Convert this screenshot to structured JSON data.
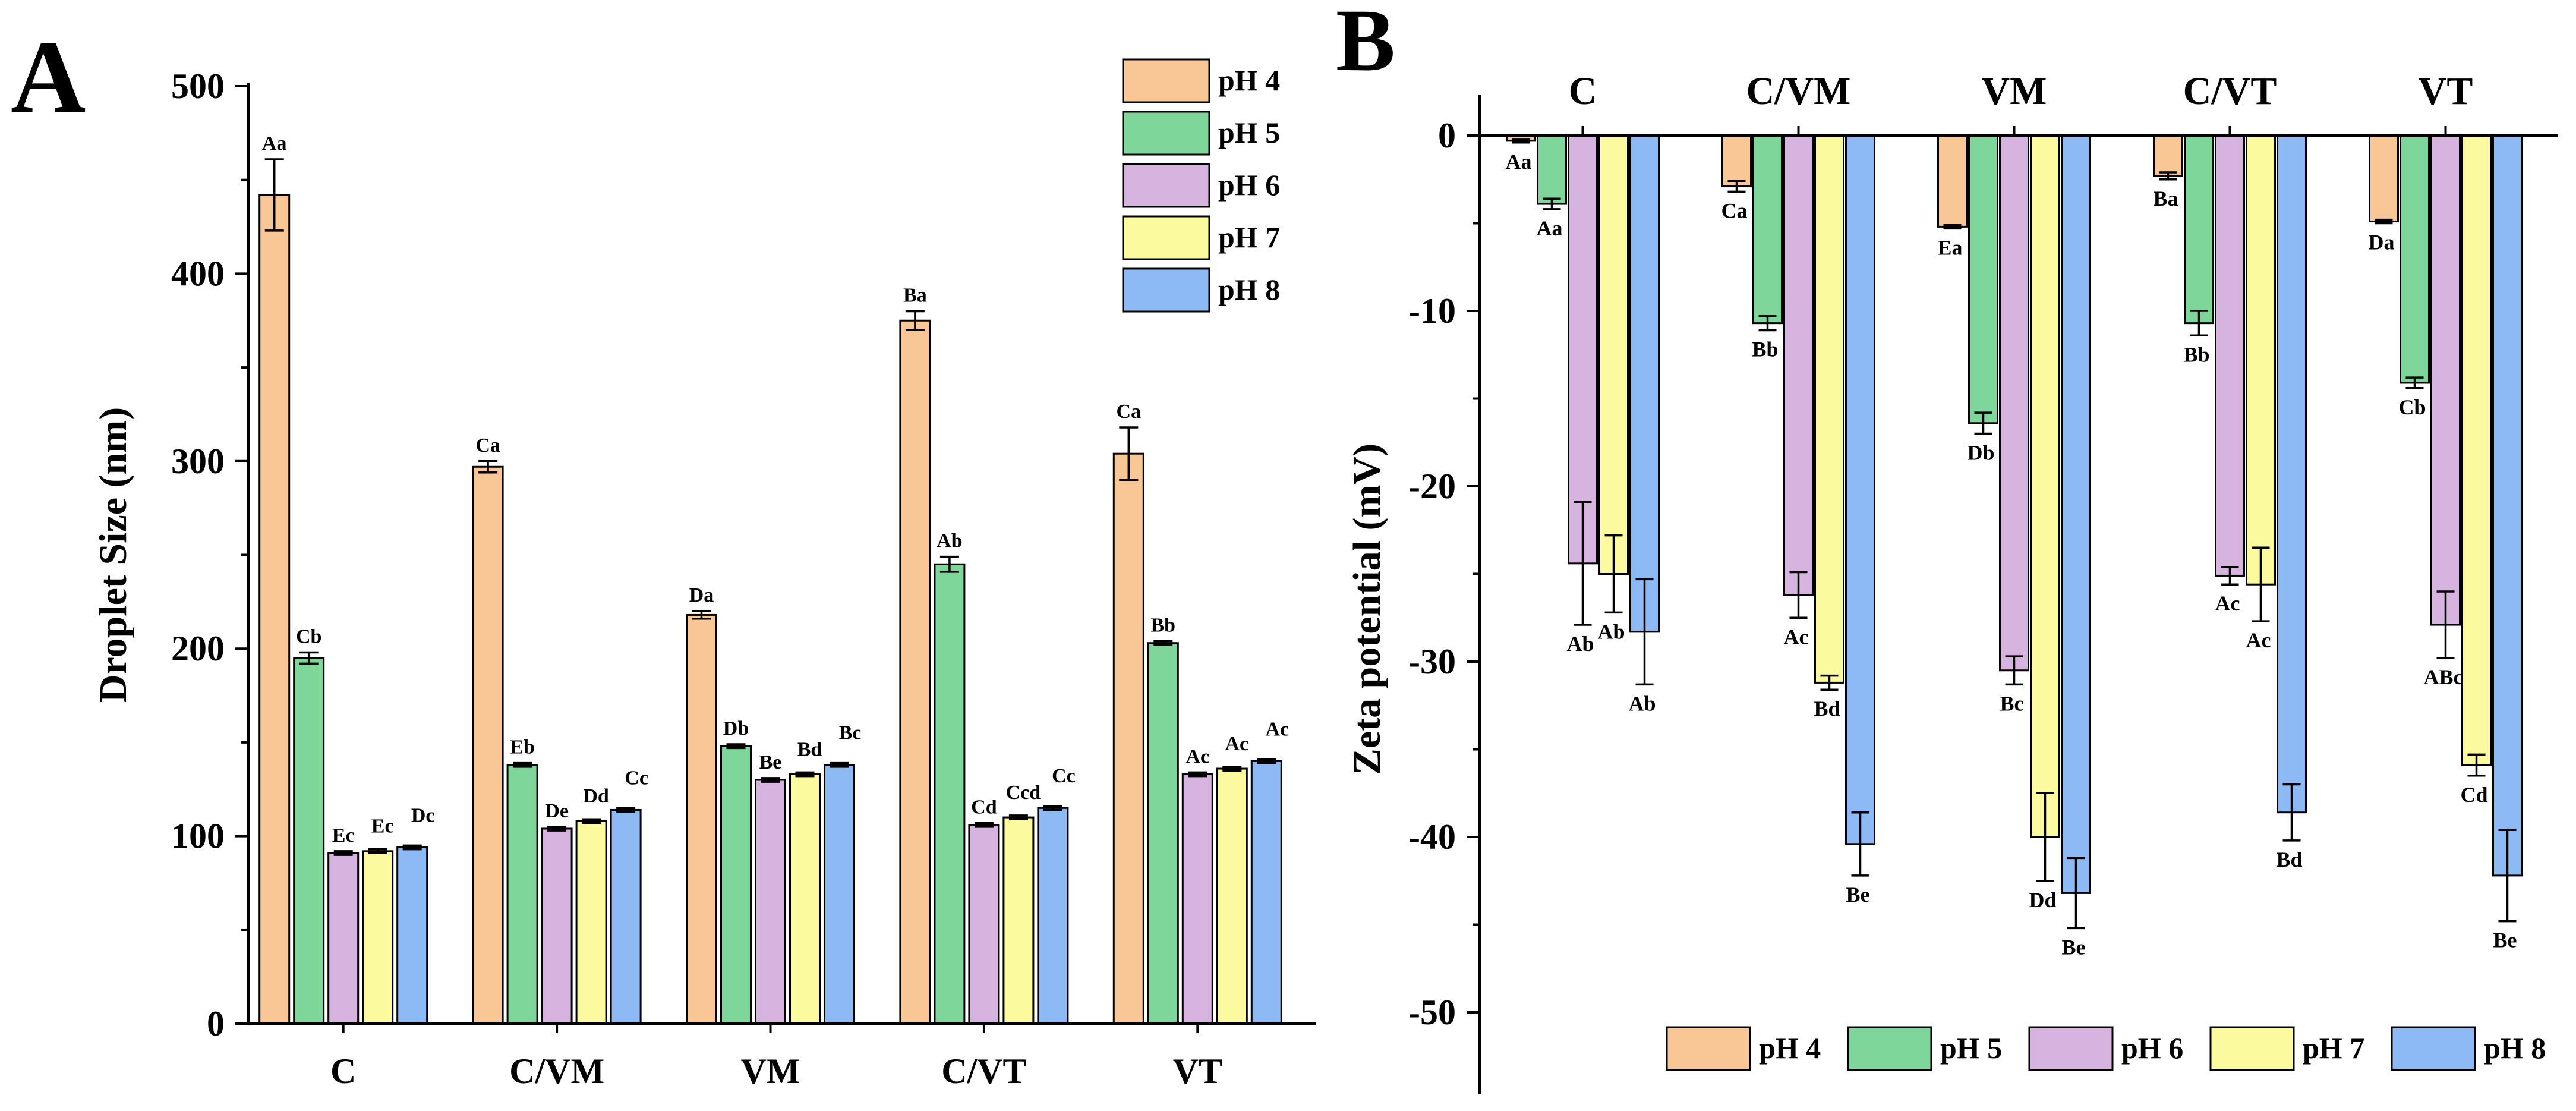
{
  "colors": {
    "pH 4": "#f9c796",
    "pH 5": "#7ed69a",
    "pH 6": "#d6b4df",
    "pH 7": "#fcfa9e",
    "pH 8": "#8db9f4"
  },
  "chart_data": [
    {
      "panel": "A",
      "type": "bar",
      "title": "",
      "xlabel": "",
      "ylabel": "Droplet  Size (nm)",
      "ylim": [
        0,
        500
      ],
      "yticks": [
        0,
        100,
        200,
        300,
        400,
        500
      ],
      "categories": [
        "C",
        "C/VM",
        "VM",
        "C/VT",
        "VT"
      ],
      "legend": {
        "position": "top-right",
        "entries": [
          "pH 4",
          "pH 5",
          "pH 6",
          "pH 7",
          "pH 8"
        ]
      },
      "series": [
        {
          "name": "pH 4",
          "values": [
            442,
            297,
            218,
            375,
            304
          ],
          "errors": [
            19,
            3,
            2,
            5,
            14
          ],
          "labels": [
            "Aa",
            "Ca",
            "Da",
            "Ba",
            "Ca"
          ]
        },
        {
          "name": "pH 5",
          "values": [
            195,
            138,
            148,
            245,
            203
          ],
          "errors": [
            3,
            1,
            1,
            4,
            1
          ],
          "labels": [
            "Cb",
            "Eb",
            "Db",
            "Ab",
            "Bb"
          ]
        },
        {
          "name": "pH 6",
          "values": [
            91,
            104,
            130,
            106,
            133
          ],
          "errors": [
            1,
            1,
            1,
            1,
            1
          ],
          "labels": [
            "Ec",
            "De",
            "Be",
            "Cd",
            "Ac"
          ]
        },
        {
          "name": "pH 7",
          "values": [
            92,
            108,
            133,
            110,
            136
          ],
          "errors": [
            1,
            1,
            1,
            1,
            1
          ],
          "labels": [
            "Ec",
            "Dd",
            "Bd",
            "Ccd",
            "Ac"
          ]
        },
        {
          "name": "pH 8",
          "values": [
            94,
            114,
            138,
            115,
            140
          ],
          "errors": [
            1,
            1,
            1,
            1,
            1
          ],
          "labels": [
            "Dc",
            "Cc",
            "Bc",
            "Cc",
            "Ac"
          ]
        }
      ]
    },
    {
      "panel": "B",
      "type": "bar",
      "title": "",
      "xlabel": "",
      "ylabel": "Zeta potential (mV)",
      "ylim": [
        -54,
        0
      ],
      "yticks": [
        0,
        -10,
        -20,
        -30,
        -40,
        -50
      ],
      "categories": [
        "C",
        "C/VM",
        "VM",
        "C/VT",
        "VT"
      ],
      "category_axis": "top",
      "legend": {
        "position": "bottom",
        "entries": [
          "pH 4",
          "pH 5",
          "pH 6",
          "pH 7",
          "pH 8"
        ]
      },
      "series": [
        {
          "name": "pH 4",
          "values": [
            -0.3,
            -2.9,
            -5.2,
            -2.3,
            -4.9
          ],
          "errors": [
            0.1,
            0.3,
            0.1,
            0.2,
            0.1
          ],
          "labels": [
            "Aa",
            "Ca",
            "Ea",
            "Ba",
            "Da"
          ]
        },
        {
          "name": "pH 5",
          "values": [
            -3.9,
            -10.7,
            -16.4,
            -10.7,
            -14.1
          ],
          "errors": [
            0.3,
            0.4,
            0.6,
            0.7,
            0.3
          ],
          "labels": [
            "Aa",
            "Bb",
            "Db",
            "Bb",
            "Cb"
          ]
        },
        {
          "name": "pH 6",
          "values": [
            -24.4,
            -26.2,
            -30.5,
            -25.1,
            -27.9
          ],
          "errors": [
            3.5,
            1.3,
            0.8,
            0.5,
            1.9
          ],
          "labels": [
            "Ab",
            "Ac",
            "Bc",
            "Ac",
            "ABc"
          ]
        },
        {
          "name": "pH 7",
          "values": [
            -25.0,
            -31.2,
            -40.0,
            -25.6,
            -35.9
          ],
          "errors": [
            2.2,
            0.4,
            2.5,
            2.1,
            0.6
          ],
          "labels": [
            "Ab",
            "Bd",
            "Dd",
            "Ac",
            "Cd"
          ]
        },
        {
          "name": "pH 8",
          "values": [
            -28.3,
            -40.4,
            -43.2,
            -38.6,
            -42.2
          ],
          "errors": [
            3.0,
            1.8,
            2.0,
            1.6,
            2.6
          ],
          "labels": [
            "Ab",
            "Be",
            "Be",
            "Bd",
            "Be"
          ]
        }
      ]
    }
  ]
}
